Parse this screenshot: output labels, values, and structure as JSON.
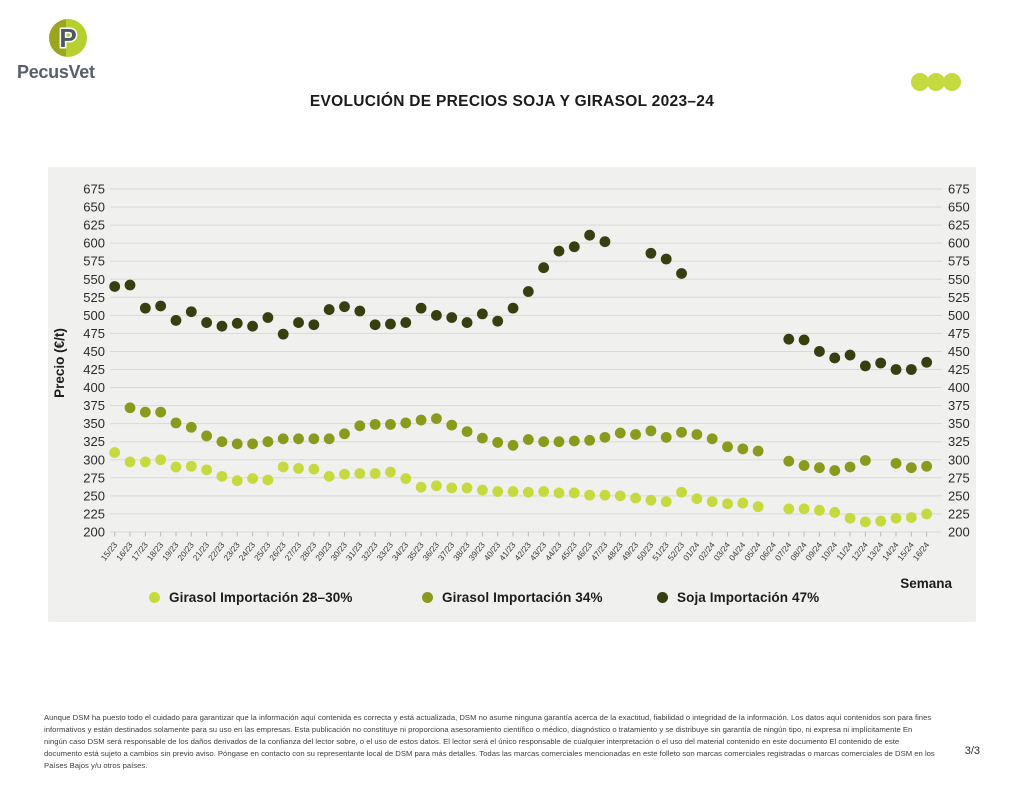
{
  "logo": {
    "brand": "PecusVet",
    "monogram": "P"
  },
  "header": {
    "title": "EVOLUCIÓN DE PRECIOS SOJA Y GIRASOL 2023–24"
  },
  "decor": {
    "dots_color": "#c6da3f"
  },
  "chart_data": {
    "type": "scatter",
    "title": "EVOLUCIÓN DE PRECIOS SOJA Y GIRASOL 2023–24",
    "xlabel": "Semana",
    "ylabel": "Precio (€/t)",
    "ylim": [
      200,
      675
    ],
    "ytick_step": 25,
    "grid": true,
    "legend_position": "bottom",
    "background": "#f0f0ee",
    "gridline_color": "#d9d9d6",
    "categories": [
      "15/23",
      "16/23",
      "17/23",
      "18/23",
      "19/23",
      "20/23",
      "21/23",
      "22/23",
      "23/23",
      "24/23",
      "25/23",
      "26/23",
      "27/23",
      "28/23",
      "29/23",
      "30/23",
      "31/23",
      "32/23",
      "33/23",
      "34/23",
      "35/23",
      "36/23",
      "37/23",
      "38/23",
      "39/23",
      "40/23",
      "41/23",
      "42/23",
      "43/23",
      "44/23",
      "45/23",
      "46/23",
      "47/23",
      "48/23",
      "49/23",
      "50/23",
      "51/23",
      "52/23",
      "01/24",
      "02/24",
      "03/24",
      "04/24",
      "05/24",
      "06/24",
      "07/24",
      "08/24",
      "09/24",
      "10/24",
      "11/24",
      "12/24",
      "13/24",
      "14/24",
      "15/24",
      "16/24"
    ],
    "series": [
      {
        "name": "Girasol Importación 28–30%",
        "color": "#c6da3f",
        "values": [
          310,
          297,
          297,
          300,
          290,
          291,
          286,
          277,
          271,
          274,
          272,
          290,
          288,
          287,
          277,
          280,
          281,
          281,
          283,
          274,
          262,
          264,
          261,
          261,
          258,
          256,
          256,
          255,
          256,
          254,
          254,
          251,
          251,
          250,
          247,
          244,
          242,
          255,
          246,
          242,
          239,
          240,
          235,
          null,
          232,
          232,
          230,
          227,
          219,
          214,
          215,
          219,
          220,
          225
        ]
      },
      {
        "name": "Girasol Importación 34%",
        "color": "#8a9a1c",
        "values": [
          null,
          372,
          366,
          366,
          351,
          345,
          333,
          325,
          322,
          322,
          325,
          329,
          329,
          329,
          329,
          336,
          347,
          349,
          349,
          351,
          355,
          357,
          348,
          339,
          330,
          324,
          320,
          328,
          325,
          325,
          326,
          327,
          331,
          337,
          335,
          340,
          331,
          338,
          335,
          329,
          318,
          315,
          312,
          null,
          298,
          292,
          289,
          285,
          290,
          299,
          null,
          295,
          289,
          291
        ]
      },
      {
        "name": "Soja Importación 47%",
        "color": "#363f10",
        "values": [
          540,
          542,
          510,
          513,
          493,
          505,
          490,
          485,
          489,
          485,
          497,
          474,
          490,
          487,
          508,
          512,
          506,
          487,
          488,
          490,
          510,
          500,
          497,
          490,
          502,
          492,
          510,
          533,
          566,
          589,
          595,
          611,
          602,
          null,
          null,
          586,
          578,
          558,
          null,
          null,
          null,
          null,
          null,
          null,
          467,
          466,
          450,
          441,
          445,
          430,
          434,
          425,
          425,
          435
        ]
      }
    ]
  },
  "footer": {
    "disclaimer": "Aunque DSM ha puesto todo el cuidado para garantizar que la información aquí contenida es correcta y está actualizada, DSM no asume ninguna garantía acerca de la exactitud, fiabilidad o integridad de la información. Los datos aquí contenidos son para fines informativos y están destinados solamente para su uso en las empresas. Esta publicación no constituye ni proporciona asesoramiento científico o médico, diagnóstico o tratamiento y se distribuye sin garantía de ningún tipo, ni expresa ni implícitamente En ningún caso DSM será responsable de los daños derivados de la confianza del lector sobre, o el uso de estos datos. El lector será el único responsable de cualquier interpretación o el uso del material contenido en este documento El contenido de este documento está sujeto a cambios sin previo aviso. Póngase en contacto con su representante local de DSM para más detalles. Todas las marcas comerciales mencionadas en este folleto son marcas comerciales registradas o marcas comerciales de DSM en los Países Bajos y/u otros países.",
    "page": "3/3"
  }
}
